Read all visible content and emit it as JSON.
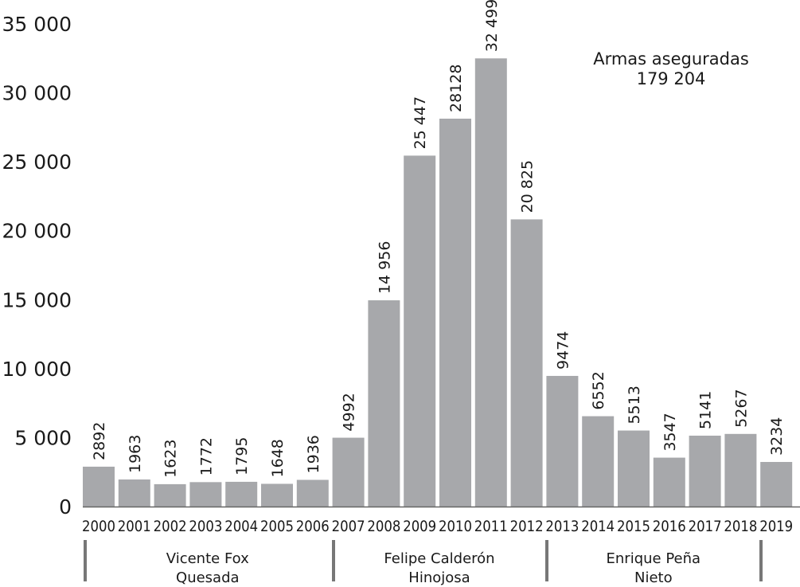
{
  "chart_data": {
    "type": "bar",
    "categories": [
      "2000",
      "2001",
      "2002",
      "2003",
      "2004",
      "2005",
      "2006",
      "2007",
      "2008",
      "2009",
      "2010",
      "2011",
      "2012",
      "2013",
      "2014",
      "2015",
      "2016",
      "2017",
      "2018",
      "2019"
    ],
    "values": [
      2892,
      1963,
      1623,
      1772,
      1795,
      1648,
      1936,
      4992,
      14956,
      25447,
      28128,
      32499,
      20825,
      9474,
      6552,
      5513,
      3547,
      5141,
      5267,
      3234
    ],
    "data_labels": [
      "2892",
      "1963",
      "1623",
      "1772",
      "1795",
      "1648",
      "1936",
      "4992",
      "14 956",
      "25 447",
      "28128",
      "32 499",
      "20 825",
      "9474",
      "6552",
      "5513",
      "3547",
      "5141",
      "5267",
      "3234"
    ],
    "ylim": [
      0,
      35000
    ],
    "yticks": [
      0,
      5000,
      10000,
      15000,
      20000,
      25000,
      30000,
      35000
    ],
    "ytick_labels": [
      "0",
      "5 000",
      "10 000",
      "15 000",
      "20 000",
      "25 000",
      "30 000",
      "35 000"
    ],
    "grid": false,
    "bar_color": "#a7a8ab",
    "annotation": {
      "line1": "Armas aseguradas",
      "line2": "179 204"
    },
    "periods": [
      {
        "line1": "Vicente Fox",
        "line2": "Quesada",
        "from": "2000",
        "to": "2006"
      },
      {
        "line1": "Felipe Calderón",
        "line2": "Hinojosa",
        "from": "2007",
        "to": "2012"
      },
      {
        "line1": "Enrique Peña",
        "line2": "Nieto",
        "from": "2013",
        "to": "2018"
      }
    ]
  }
}
